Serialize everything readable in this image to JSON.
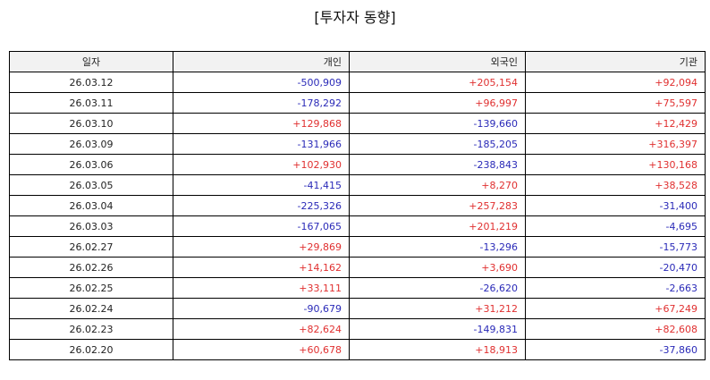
{
  "title": "[투자자 동향]",
  "columns": [
    "일자",
    "개인",
    "외국인",
    "기관"
  ],
  "colors": {
    "positive": "#e03030",
    "negative": "#2a2ab8"
  },
  "rows": [
    [
      "26.03.12",
      "-500,909",
      "+205,154",
      "+92,094"
    ],
    [
      "26.03.11",
      "-178,292",
      "+96,997",
      "+75,597"
    ],
    [
      "26.03.10",
      "+129,868",
      "-139,660",
      "+12,429"
    ],
    [
      "26.03.09",
      "-131,966",
      "-185,205",
      "+316,397"
    ],
    [
      "26.03.06",
      "+102,930",
      "-238,843",
      "+130,168"
    ],
    [
      "26.03.05",
      "-41,415",
      "+8,270",
      "+38,528"
    ],
    [
      "26.03.04",
      "-225,326",
      "+257,283",
      "-31,400"
    ],
    [
      "26.03.03",
      "-167,065",
      "+201,219",
      "-4,695"
    ],
    [
      "26.02.27",
      "+29,869",
      "-13,296",
      "-15,773"
    ],
    [
      "26.02.26",
      "+14,162",
      "+3,690",
      "-20,470"
    ],
    [
      "26.02.25",
      "+33,111",
      "-26,620",
      "-2,663"
    ],
    [
      "26.02.24",
      "-90,679",
      "+31,212",
      "+67,249"
    ],
    [
      "26.02.23",
      "+82,624",
      "-149,831",
      "+82,608"
    ],
    [
      "26.02.20",
      "+60,678",
      "+18,913",
      "-37,860"
    ]
  ]
}
